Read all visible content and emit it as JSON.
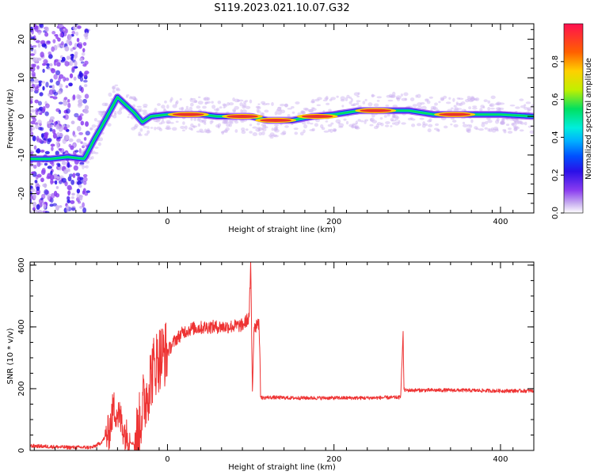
{
  "title": "S119.2023.021.10.07.G32",
  "colors": {
    "snr_line": "#ee3333",
    "ridge_core": "#e83030",
    "ridge_outer": "#00e8ff",
    "colormap": [
      "#ffffff",
      "#c9b0f0",
      "#8a3cf0",
      "#2a10e8",
      "#0050ff",
      "#00b0ff",
      "#00eedd",
      "#00e060",
      "#c0f000",
      "#ffd000",
      "#ff6000",
      "#ff1050"
    ]
  },
  "chart_data": [
    {
      "type": "heatmap",
      "xlabel": "Height of straight line (km)",
      "ylabel": "Frequency (Hz)",
      "xlim": [
        -165,
        440
      ],
      "ylim": [
        -25,
        24
      ],
      "x_ticks": [
        0,
        200,
        400
      ],
      "y_ticks": [
        -20,
        -10,
        0,
        10,
        20
      ],
      "colorbar": {
        "label": "Normalized spectral amplitude",
        "range": [
          0,
          1
        ],
        "ticks": [
          0.0,
          0.2,
          0.4,
          0.6,
          0.8
        ]
      },
      "ridge": [
        {
          "x": -165,
          "y": -11
        },
        {
          "x": -140,
          "y": -11
        },
        {
          "x": -120,
          "y": -10.5
        },
        {
          "x": -100,
          "y": -11
        },
        {
          "x": -88,
          "y": -6
        },
        {
          "x": -80,
          "y": -3
        },
        {
          "x": -70,
          "y": 1
        },
        {
          "x": -60,
          "y": 5
        },
        {
          "x": -50,
          "y": 3
        },
        {
          "x": -40,
          "y": 1
        },
        {
          "x": -30,
          "y": -1.5
        },
        {
          "x": -20,
          "y": 0
        },
        {
          "x": 0,
          "y": 0.5
        },
        {
          "x": 40,
          "y": 0.5
        },
        {
          "x": 60,
          "y": 0
        },
        {
          "x": 100,
          "y": 0
        },
        {
          "x": 120,
          "y": -1
        },
        {
          "x": 150,
          "y": -1
        },
        {
          "x": 175,
          "y": 0
        },
        {
          "x": 200,
          "y": 0.5
        },
        {
          "x": 230,
          "y": 1.5
        },
        {
          "x": 290,
          "y": 1.5
        },
        {
          "x": 320,
          "y": 0.5
        },
        {
          "x": 400,
          "y": 0.5
        },
        {
          "x": 440,
          "y": 0
        }
      ],
      "hotspots": [
        {
          "x": 25,
          "y": 0.5
        },
        {
          "x": 90,
          "y": 0
        },
        {
          "x": 130,
          "y": -1
        },
        {
          "x": 180,
          "y": 0
        },
        {
          "x": 250,
          "y": 1.5
        },
        {
          "x": 345,
          "y": 0.5
        }
      ]
    },
    {
      "type": "line",
      "xlabel": "Height of straight line (km)",
      "ylabel": "SNR (10 * v/v)",
      "xlim": [
        -165,
        440
      ],
      "ylim": [
        0,
        610
      ],
      "x_ticks": [
        0,
        200,
        400
      ],
      "y_ticks": [
        0,
        200,
        400,
        600
      ],
      "series": [
        {
          "x": [
            -165,
            -120,
            -90,
            -80,
            -70,
            -65,
            -60,
            -55,
            -50,
            -45,
            -40,
            -35,
            -30,
            -25,
            -20,
            -15,
            -10,
            -5,
            0,
            10,
            20,
            30,
            50,
            70,
            90,
            98,
            100,
            102,
            104,
            106,
            108,
            110,
            112,
            114,
            120,
            150,
            200,
            240,
            280,
            283,
            284,
            285,
            286,
            300,
            350,
            400,
            440
          ],
          "y": [
            15,
            10,
            10,
            25,
            60,
            140,
            120,
            90,
            50,
            30,
            20,
            60,
            140,
            180,
            240,
            280,
            300,
            310,
            320,
            360,
            385,
            395,
            400,
            400,
            405,
            430,
            600,
            190,
            410,
            400,
            420,
            410,
            175,
            170,
            172,
            170,
            170,
            170,
            172,
            380,
            200,
            195,
            195,
            195,
            195,
            193,
            193
          ]
        }
      ]
    }
  ]
}
